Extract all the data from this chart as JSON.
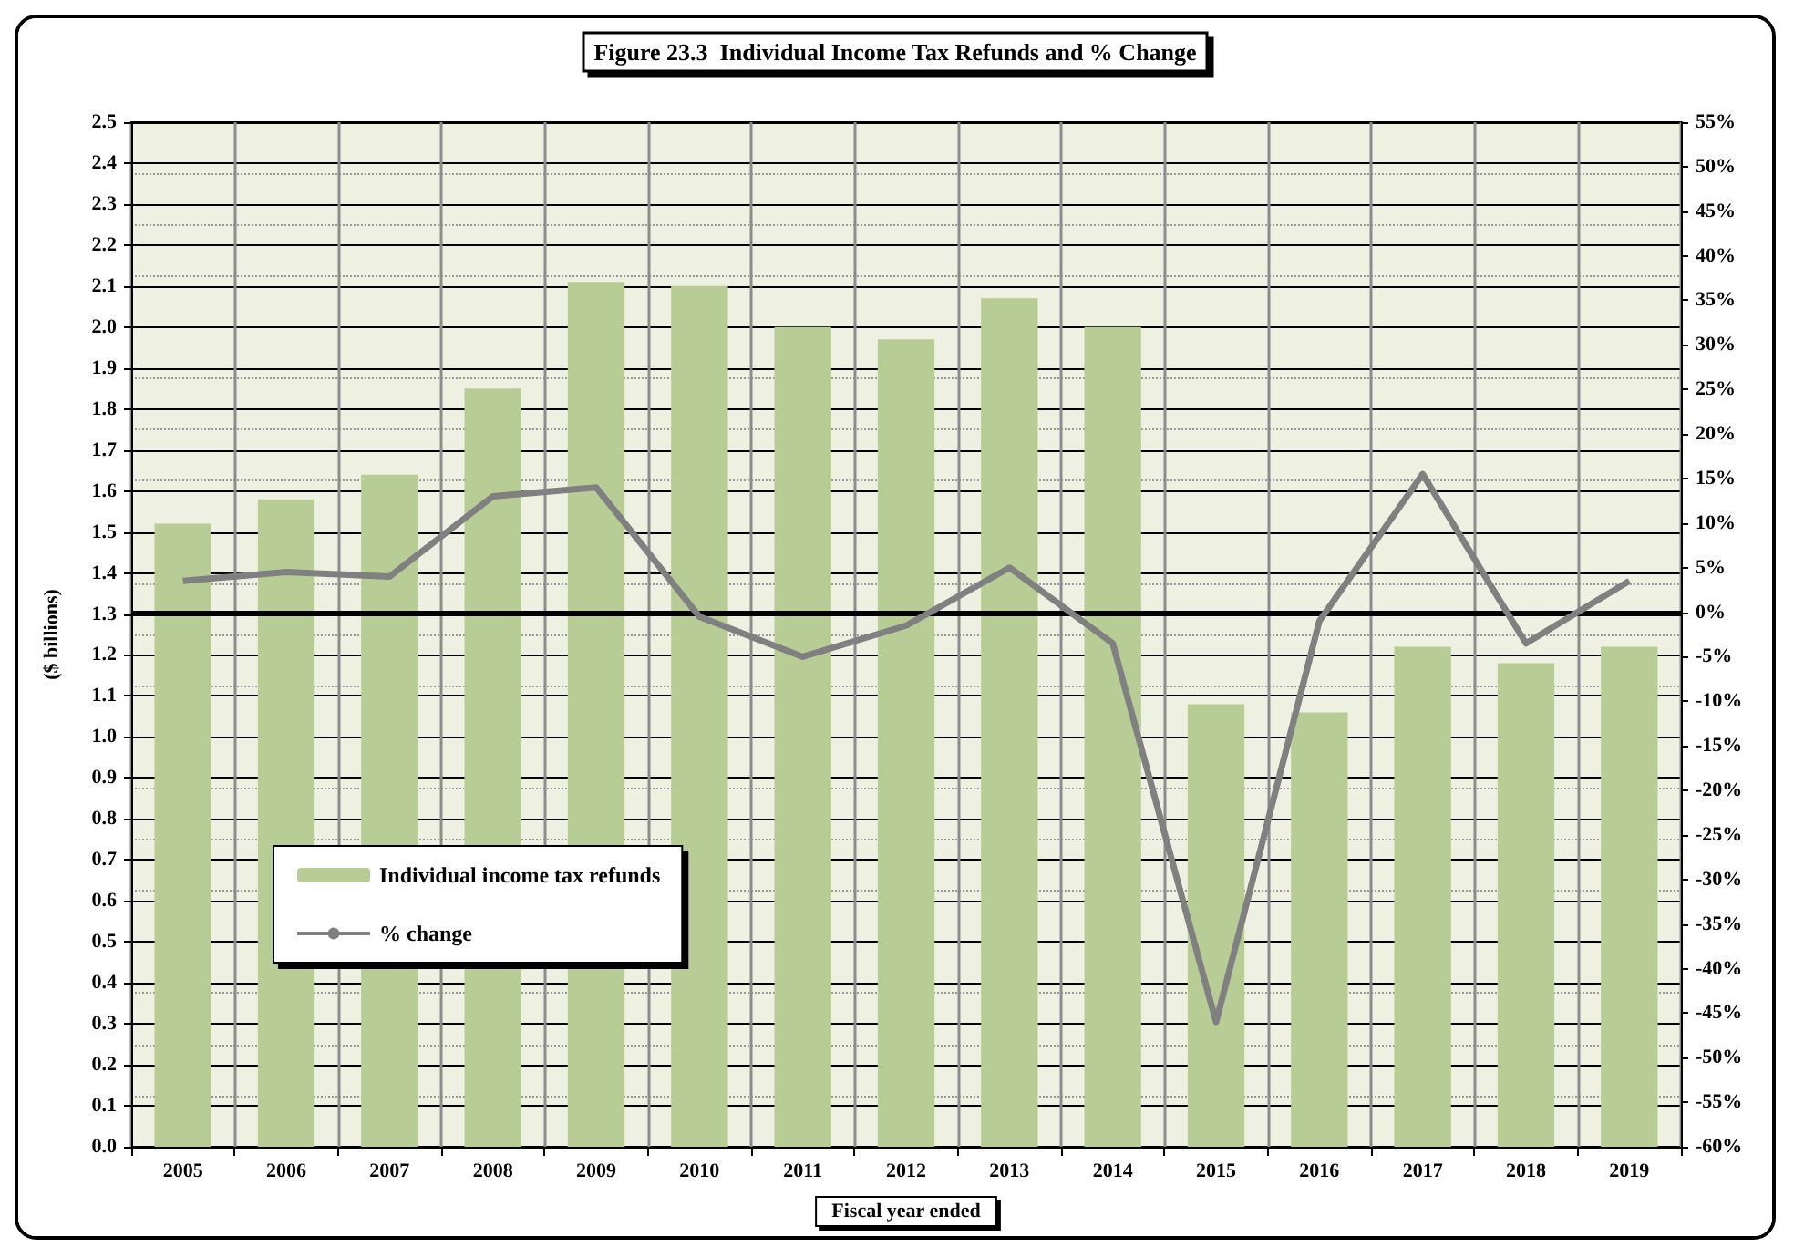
{
  "chart_data": {
    "type": "bar",
    "title": "Figure 23.3  Individual Income Tax Refunds and % Change",
    "xlabel": "Fiscal year ended",
    "ylabel": "($ billions)",
    "categories": [
      "2005",
      "2006",
      "2007",
      "2008",
      "2009",
      "2010",
      "2011",
      "2012",
      "2013",
      "2014",
      "2015",
      "2016",
      "2017",
      "2018",
      "2019"
    ],
    "series": [
      {
        "name": "Individual income tax refunds",
        "color": "#b8cd96",
        "values": [
          1.52,
          1.58,
          1.64,
          1.85,
          2.11,
          2.1,
          2.0,
          1.97,
          2.07,
          2.0,
          1.08,
          1.06,
          1.22,
          1.18,
          1.22
        ]
      },
      {
        "name": "% change",
        "type": "line",
        "axis": "y2",
        "color": "#808080",
        "values": [
          3.5,
          4.5,
          4,
          13,
          14,
          -0.5,
          -5,
          -1.5,
          5,
          -3.5,
          -46,
          -1,
          15.5,
          -3.5,
          3.5
        ]
      }
    ],
    "ylim": [
      0,
      2.5
    ],
    "yticks": [
      {
        "value": 0,
        "label": "0.0"
      },
      0.1,
      0.2,
      0.3,
      0.4,
      0.5,
      0.6,
      0.7,
      0.8,
      0.9,
      {
        "value": 1,
        "label": "1.0"
      },
      1.1,
      1.2,
      1.3,
      1.4,
      1.5,
      1.6,
      1.7,
      1.8,
      1.9,
      {
        "value": 2,
        "label": "2.0"
      },
      2.1,
      2.2,
      2.3,
      2.4,
      2.5
    ],
    "y2lim": [
      -60,
      55
    ],
    "y2ticks": [
      {
        "value": -60,
        "label": "-60%"
      },
      {
        "value": -55,
        "label": "-55%"
      },
      {
        "value": -50,
        "label": "-50%"
      },
      {
        "value": -45,
        "label": "-45%"
      },
      {
        "value": -40,
        "label": "-40%"
      },
      {
        "value": -35,
        "label": "-35%"
      },
      {
        "value": -30,
        "label": "-30%"
      },
      {
        "value": -25,
        "label": "-25%"
      },
      {
        "value": -20,
        "label": "-20%"
      },
      {
        "value": -15,
        "label": "-15%"
      },
      {
        "value": -10,
        "label": "-10%"
      },
      {
        "value": -5,
        "label": "-5%"
      },
      {
        "value": 0,
        "label": "0%"
      },
      {
        "value": 5,
        "label": "5%"
      },
      {
        "value": 10,
        "label": "10%"
      },
      {
        "value": 15,
        "label": "15%"
      },
      {
        "value": 20,
        "label": "20%"
      },
      {
        "value": 25,
        "label": "25%"
      },
      {
        "value": 30,
        "label": "30%"
      },
      {
        "value": 35,
        "label": "35%"
      },
      {
        "value": 40,
        "label": "40%"
      },
      {
        "value": 45,
        "label": "45%"
      },
      {
        "value": 50,
        "label": "50%"
      },
      {
        "value": 55,
        "label": "55%"
      }
    ],
    "ref_lines": [
      {
        "axis": "y2",
        "value": 0,
        "color": "#000000"
      }
    ],
    "grid": true,
    "legend": "bottom left"
  }
}
